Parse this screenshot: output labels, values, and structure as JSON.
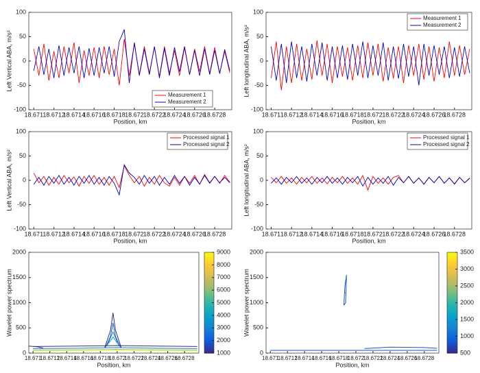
{
  "chart_data": [
    {
      "type": "line",
      "ylabel": "Left Vertical ABA, m/s²",
      "xlabel": "Position, km",
      "legend": "lower right",
      "x": [
        18.671,
        18.67105,
        18.6711,
        18.67115,
        18.6712,
        18.67125,
        18.6713,
        18.67135,
        18.6714,
        18.67145,
        18.6715,
        18.67155,
        18.6716,
        18.67165,
        18.6717,
        18.67175,
        18.6718,
        18.67185,
        18.6719,
        18.67195,
        18.672,
        18.67205,
        18.6721,
        18.67215,
        18.6722,
        18.67225,
        18.6723,
        18.67235,
        18.6724,
        18.67245,
        18.6725,
        18.67255,
        18.6726,
        18.67265,
        18.6727,
        18.67275,
        18.6728,
        18.67285,
        18.6729,
        18.67295
      ],
      "xlim": [
        18.67095,
        18.67297
      ],
      "xticks": [
        18.671,
        18.6712,
        18.6714,
        18.6716,
        18.6718,
        18.672,
        18.6722,
        18.6724,
        18.6726,
        18.6728
      ],
      "ylim": [
        -100,
        100
      ],
      "yticks": [
        -100,
        -50,
        0,
        50,
        100
      ],
      "series": [
        {
          "name": "Measurement 1",
          "color": "#ff0000",
          "values": [
            25,
            -30,
            35,
            -40,
            20,
            -35,
            30,
            -25,
            38,
            -45,
            22,
            -30,
            28,
            -35,
            30,
            -28,
            25,
            -50,
            45,
            -30,
            35,
            -28,
            30,
            -25,
            28,
            -32,
            30,
            -25,
            22,
            -30,
            27,
            -28,
            25,
            -22,
            30,
            -26,
            28,
            -25,
            20,
            -24
          ]
        },
        {
          "name": "Measurement 2",
          "color": "#0000cc",
          "values": [
            -20,
            30,
            -28,
            25,
            -35,
            32,
            -30,
            28,
            -25,
            30,
            -35,
            26,
            -30,
            28,
            -25,
            30,
            -32,
            40,
            65,
            -45,
            38,
            -30,
            25,
            -28,
            30,
            -35,
            26,
            -30,
            28,
            -22,
            30,
            -28,
            22,
            -30,
            25,
            -28,
            22,
            -26,
            24,
            -20
          ]
        }
      ]
    },
    {
      "type": "line",
      "ylabel": "Left longitudinal ABA, m/s²",
      "xlabel": "Position, km",
      "legend": "upper right",
      "x": [
        18.671,
        18.67105,
        18.6711,
        18.67115,
        18.6712,
        18.67125,
        18.6713,
        18.67135,
        18.6714,
        18.67145,
        18.6715,
        18.67155,
        18.6716,
        18.67165,
        18.6717,
        18.67175,
        18.6718,
        18.67185,
        18.6719,
        18.67195,
        18.672,
        18.67205,
        18.6721,
        18.67215,
        18.6722,
        18.67225,
        18.6723,
        18.67235,
        18.6724,
        18.67245,
        18.6725,
        18.67255,
        18.6726,
        18.67265,
        18.6727,
        18.67275,
        18.6728,
        18.67285,
        18.6729,
        18.67295
      ],
      "xlim": [
        18.67095,
        18.67297
      ],
      "xticks": [
        18.671,
        18.6712,
        18.6714,
        18.6716,
        18.6718,
        18.672,
        18.6722,
        18.6724,
        18.6726,
        18.6728
      ],
      "ylim": [
        -100,
        100
      ],
      "yticks": [
        -100,
        -50,
        0,
        50,
        100
      ],
      "series": [
        {
          "name": "Measurement 1",
          "color": "#ff0000",
          "values": [
            -35,
            40,
            -60,
            30,
            -45,
            35,
            -40,
            25,
            -38,
            42,
            -30,
            35,
            -45,
            30,
            -32,
            28,
            -40,
            32,
            -35,
            38,
            -30,
            35,
            -42,
            28,
            -36,
            30,
            -45,
            32,
            -30,
            35,
            -38,
            30,
            -42,
            28,
            -35,
            40,
            -30,
            32,
            -28,
            25
          ]
        },
        {
          "name": "Measurement 2",
          "color": "#0000cc",
          "values": [
            30,
            -40,
            35,
            -45,
            40,
            -35,
            30,
            -42,
            35,
            -30,
            38,
            -40,
            30,
            -35,
            32,
            -38,
            35,
            -30,
            40,
            -35,
            32,
            -30,
            38,
            -40,
            30,
            -36,
            35,
            -32,
            30,
            -50,
            35,
            -30,
            32,
            -28,
            30,
            -35,
            28,
            -32,
            30,
            -25
          ]
        }
      ]
    },
    {
      "type": "line",
      "ylabel": "Left Vertical ABA, m/s²",
      "xlabel": "Position, km",
      "legend": "upper right",
      "x": [
        18.671,
        18.67105,
        18.6711,
        18.67115,
        18.6712,
        18.67125,
        18.6713,
        18.67135,
        18.6714,
        18.67145,
        18.6715,
        18.67155,
        18.6716,
        18.67165,
        18.6717,
        18.67175,
        18.6718,
        18.67185,
        18.6719,
        18.67195,
        18.672,
        18.67205,
        18.6721,
        18.67215,
        18.6722,
        18.67225,
        18.6723,
        18.67235,
        18.6724,
        18.67245,
        18.6725,
        18.67255,
        18.6726,
        18.67265,
        18.6727,
        18.67275,
        18.6728,
        18.67285,
        18.6729,
        18.67295
      ],
      "xlim": [
        18.67095,
        18.67297
      ],
      "xticks": [
        18.671,
        18.6712,
        18.6714,
        18.6716,
        18.6718,
        18.672,
        18.6722,
        18.6724,
        18.6726,
        18.6728
      ],
      "ylim": [
        -100,
        100
      ],
      "yticks": [
        -100,
        -50,
        0,
        50,
        100
      ],
      "series": [
        {
          "name": "Processed signal 1",
          "color": "#ff0000",
          "values": [
            15,
            -5,
            8,
            -10,
            6,
            -8,
            10,
            -5,
            7,
            -12,
            8,
            -6,
            10,
            -8,
            6,
            -10,
            8,
            -15,
            30,
            10,
            -5,
            8,
            -12,
            6,
            -8,
            10,
            -5,
            -12,
            6,
            -10,
            8,
            -6,
            10,
            -8,
            12,
            -5,
            8,
            -6,
            10,
            -4
          ]
        },
        {
          "name": "Processed signal 2",
          "color": "#0000cc",
          "values": [
            -8,
            6,
            -10,
            8,
            -6,
            10,
            -8,
            6,
            -10,
            8,
            -6,
            10,
            -8,
            6,
            -10,
            8,
            -6,
            -30,
            32,
            15,
            6,
            -8,
            10,
            -6,
            8,
            -10,
            6,
            -8,
            10,
            -6,
            8,
            -10,
            6,
            -8,
            10,
            -6,
            8,
            -5,
            6,
            -5
          ]
        }
      ]
    },
    {
      "type": "line",
      "ylabel": "Left longitudinal ABA, m/s²",
      "xlabel": "Position, km",
      "legend": "upper right",
      "x": [
        18.671,
        18.67105,
        18.6711,
        18.67115,
        18.6712,
        18.67125,
        18.6713,
        18.67135,
        18.6714,
        18.67145,
        18.6715,
        18.67155,
        18.6716,
        18.67165,
        18.6717,
        18.67175,
        18.6718,
        18.67185,
        18.6719,
        18.67195,
        18.672,
        18.67205,
        18.6721,
        18.67215,
        18.6722,
        18.67225,
        18.6723,
        18.67235,
        18.6724,
        18.67245,
        18.6725,
        18.67255,
        18.6726,
        18.67265,
        18.6727,
        18.67275,
        18.6728,
        18.67285,
        18.6729,
        18.67295
      ],
      "xlim": [
        18.67095,
        18.67297
      ],
      "xticks": [
        18.671,
        18.6712,
        18.6714,
        18.6716,
        18.6718,
        18.672,
        18.6722,
        18.6724,
        18.6726,
        18.6728
      ],
      "ylim": [
        -100,
        100
      ],
      "yticks": [
        -100,
        -50,
        0,
        50,
        100
      ],
      "series": [
        {
          "name": "Processed signal 1",
          "color": "#ff0000",
          "values": [
            6,
            -5,
            8,
            -6,
            5,
            -8,
            6,
            -5,
            8,
            -6,
            5,
            -7,
            6,
            -5,
            8,
            -6,
            5,
            -8,
            10,
            -20,
            8,
            -6,
            5,
            -8,
            6,
            10,
            -5,
            8,
            -6,
            5,
            -8,
            6,
            -5,
            8,
            -6,
            5,
            -7,
            6,
            -5,
            4
          ]
        },
        {
          "name": "Processed signal 2",
          "color": "#0000cc",
          "values": [
            -6,
            5,
            -8,
            6,
            -5,
            8,
            -6,
            5,
            -8,
            6,
            -5,
            8,
            -6,
            5,
            -8,
            6,
            -5,
            8,
            -12,
            6,
            -8,
            5,
            -6,
            8,
            -10,
            6,
            -5,
            8,
            -6,
            5,
            -8,
            6,
            -5,
            8,
            -6,
            5,
            -8,
            6,
            -5,
            5
          ]
        }
      ]
    },
    {
      "type": "contour",
      "ylabel": "Wavelet power spectrum",
      "xlabel": "Position, km",
      "xlim": [
        18.67095,
        18.67297
      ],
      "xticks": [
        18.671,
        18.6712,
        18.6714,
        18.6716,
        18.6718,
        18.672,
        18.6722,
        18.6724,
        18.6726,
        18.6728
      ],
      "ylim": [
        0,
        2000
      ],
      "yticks": [
        0,
        500,
        1000,
        1500,
        2000
      ],
      "clim": [
        1000,
        9000
      ],
      "cticks": [
        1000,
        2000,
        3000,
        4000,
        5000,
        6000,
        7000,
        8000,
        9000
      ],
      "contours": [
        {
          "level": 1000,
          "x": [
            18.67185,
            18.67192,
            18.67195,
            18.67198,
            18.67205
          ],
          "y": [
            100,
            450,
            800,
            450,
            100
          ]
        },
        {
          "level": 2000,
          "x": [
            18.67186,
            18.67192,
            18.67195,
            18.67198,
            18.67204
          ],
          "y": [
            110,
            330,
            600,
            330,
            110
          ]
        },
        {
          "level": 3000,
          "x": [
            18.67188,
            18.67195,
            18.67202
          ],
          "y": [
            150,
            420,
            150
          ]
        },
        {
          "level": 4000,
          "x": [
            18.6719,
            18.67195,
            18.672
          ],
          "y": [
            200,
            320,
            200
          ]
        },
        {
          "level": 1000,
          "x": [
            18.671,
            18.6715,
            18.672,
            18.6725,
            18.67295
          ],
          "y": [
            130,
            140,
            150,
            140,
            130
          ]
        },
        {
          "level": 3000,
          "x": [
            18.671,
            18.6715,
            18.672,
            18.6725,
            18.67295
          ],
          "y": [
            90,
            95,
            110,
            95,
            90
          ]
        },
        {
          "level": 6000,
          "x": [
            18.671,
            18.6715,
            18.672,
            18.6725,
            18.67295
          ],
          "y": [
            60,
            65,
            75,
            65,
            60
          ]
        },
        {
          "level": 9000,
          "x": [
            18.671,
            18.6715,
            18.672,
            18.6725,
            18.67295
          ],
          "y": [
            40,
            42,
            50,
            42,
            40
          ]
        },
        {
          "level": 1000,
          "x": [
            18.67095,
            18.67105,
            18.67112
          ],
          "y": [
            140,
            125,
            100
          ]
        }
      ]
    },
    {
      "type": "contour",
      "ylabel": "Wavelet power spectrum",
      "xlabel": "Position, km",
      "xlim": [
        18.67095,
        18.67297
      ],
      "xticks": [
        18.671,
        18.6712,
        18.6714,
        18.6716,
        18.6718,
        18.672,
        18.6722,
        18.6724,
        18.6726,
        18.6728
      ],
      "ylim": [
        0,
        2000
      ],
      "yticks": [
        0,
        500,
        1000,
        1500,
        2000
      ],
      "clim": [
        500,
        3500
      ],
      "cticks": [
        500,
        1000,
        1500,
        2000,
        2500,
        3000,
        3500
      ],
      "contours": [
        {
          "level": 800,
          "x": [
            18.67186,
            18.67187,
            18.67189,
            18.67188,
            18.67186
          ],
          "y": [
            950,
            1300,
            1550,
            1000,
            950
          ]
        },
        {
          "level": 1500,
          "x": [
            18.67187,
            18.67188
          ],
          "y": [
            1190,
            1200
          ]
        },
        {
          "level": 800,
          "x": [
            18.671,
            18.672,
            18.67295
          ],
          "y": [
            55,
            55,
            55
          ]
        },
        {
          "level": 800,
          "x": [
            18.6721,
            18.6724,
            18.6728,
            18.67295
          ],
          "y": [
            90,
            120,
            110,
            95
          ]
        }
      ]
    }
  ]
}
